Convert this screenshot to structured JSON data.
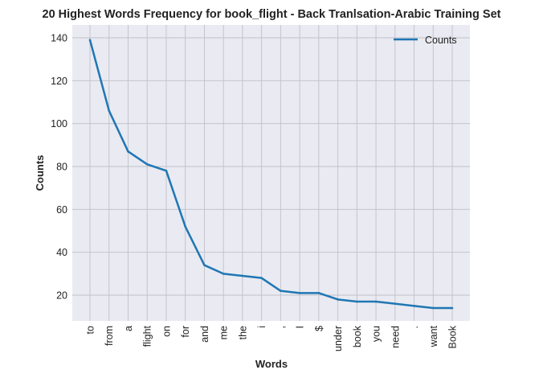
{
  "colors": {
    "plot_bg": "#eaeaf2",
    "grid": "#c0c0c8",
    "line": "#1f77b4",
    "text": "#222222"
  },
  "chart_data": {
    "type": "line",
    "title": "20 Highest Words Frequency for book_flight - Back Tranlsation-Arabic Training Set",
    "xlabel": "Words",
    "ylabel": "Counts",
    "categories": [
      "to",
      "from",
      "a",
      "flight",
      "on",
      "for",
      "and",
      "me",
      "the",
      "i",
      ",",
      "I",
      "$",
      "under",
      "book",
      "you",
      "need",
      ".",
      "want",
      "Book"
    ],
    "series": [
      {
        "name": "Counts",
        "values": [
          139,
          106,
          87,
          81,
          78,
          52,
          34,
          30,
          29,
          28,
          22,
          21,
          21,
          18,
          17,
          17,
          16,
          15,
          14,
          14
        ]
      }
    ],
    "yticks": [
      20,
      40,
      60,
      80,
      100,
      120,
      140
    ],
    "ylim": [
      8,
      146
    ],
    "grid": true,
    "legend": "top-right"
  }
}
